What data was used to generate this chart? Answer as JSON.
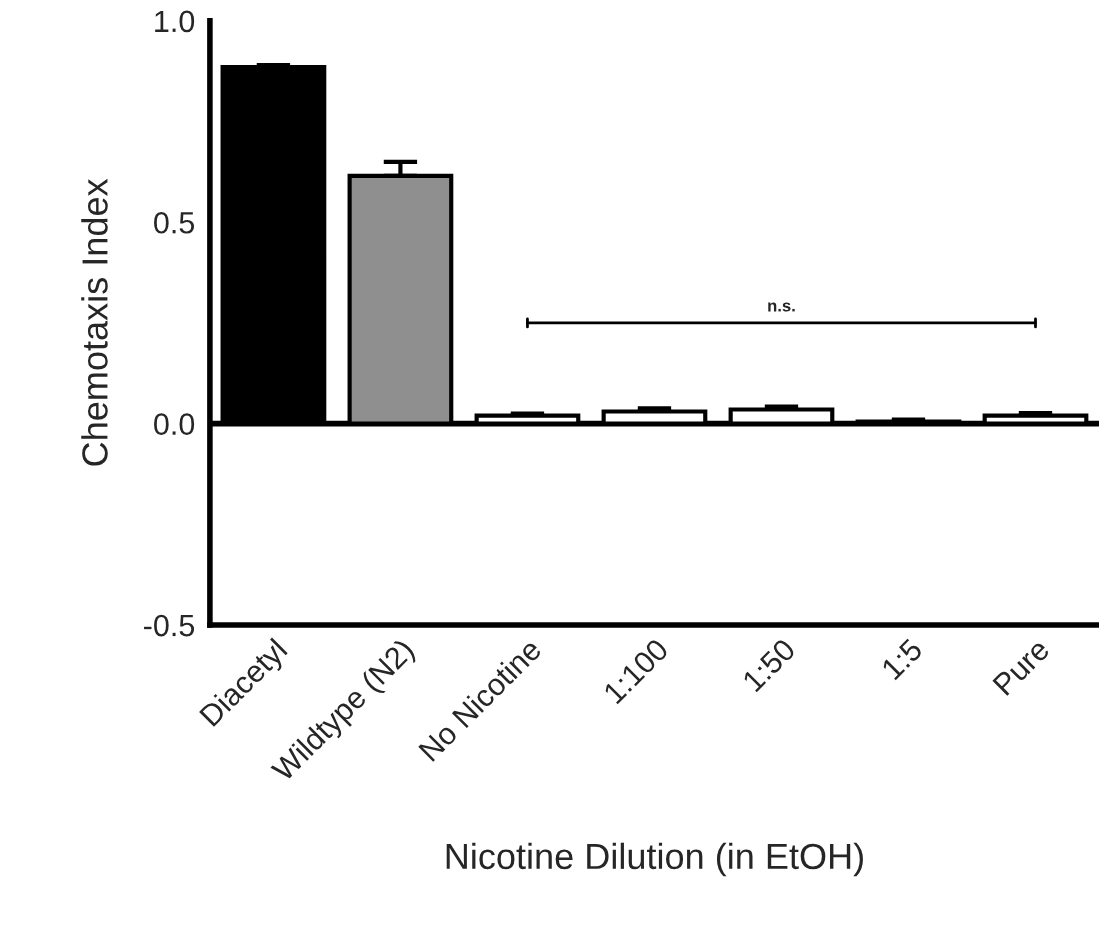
{
  "chart_data": {
    "type": "bar",
    "xlabel": "Nicotine Dilution (in EtOH)",
    "ylabel": "Chemotaxis Index",
    "categories": [
      "Diacetyl",
      "Wildtype (N2)",
      "No Nicotine",
      "1:100",
      "1:50",
      "1:5",
      "Pure"
    ],
    "values": [
      0.885,
      0.615,
      0.02,
      0.03,
      0.035,
      0.005,
      0.02
    ],
    "errors": [
      0.005,
      0.035,
      0.005,
      0.008,
      0.007,
      0.005,
      0.006
    ],
    "colors": [
      "#000000",
      "#8f8f8f",
      "#ffffff",
      "#ffffff",
      "#ffffff",
      "#ffffff",
      "#ffffff"
    ],
    "ylim": [
      -0.5,
      1.0
    ],
    "yticks": [
      {
        "value": 1.0,
        "label": "1.0"
      },
      {
        "value": 0.5,
        "label": "0.5"
      },
      {
        "value": 0.0,
        "label": "0.0"
      },
      {
        "value": -0.5,
        "label": "-0.5"
      }
    ],
    "ref_lines": [
      {
        "axis": "y",
        "value": 0
      }
    ],
    "annotations": [
      "n.s."
    ],
    "grid": false,
    "legend": false
  }
}
